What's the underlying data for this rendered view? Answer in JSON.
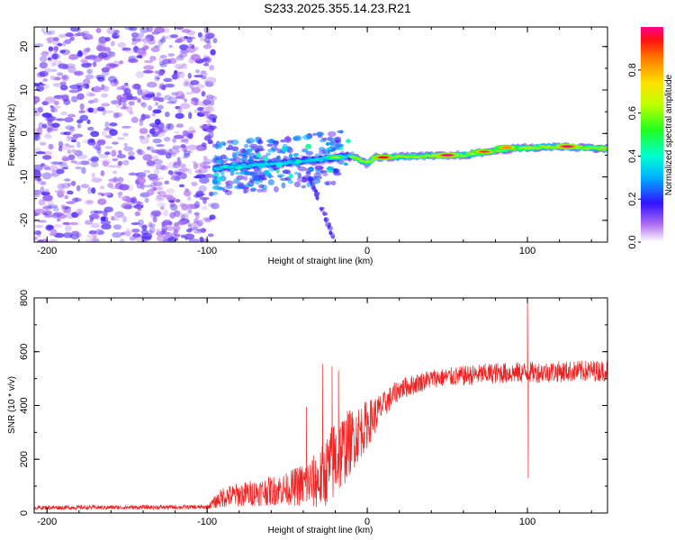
{
  "title": "S233.2025.355.14.23.R21",
  "chart_data": [
    {
      "type": "heatmap",
      "title": "S233.2025.355.14.23.R21",
      "xlabel": "Height of straight line (km)",
      "ylabel": "Frequency (Hz)",
      "xlim": [
        -208,
        150
      ],
      "ylim": [
        -25,
        24.5
      ],
      "xticks": [
        -200,
        -100,
        0,
        100
      ],
      "xtick_labels": [
        "-200",
        "-100",
        "0",
        "100"
      ],
      "yticks": [
        -20,
        -10,
        0,
        10,
        20
      ],
      "ytick_labels": [
        "-20",
        "-10",
        "0",
        "10",
        "20"
      ],
      "noise_region_x": [
        -208,
        -95
      ],
      "ridge": [
        {
          "x": -95,
          "f": -8
        },
        {
          "x": -60,
          "f": -7
        },
        {
          "x": -30,
          "f": -6
        },
        {
          "x": -20,
          "f": -5.5
        },
        {
          "x": -10,
          "f": -5.2
        },
        {
          "x": -5,
          "f": -6
        },
        {
          "x": 0,
          "f": -7
        },
        {
          "x": 5,
          "f": -5.5
        },
        {
          "x": 30,
          "f": -5.3
        },
        {
          "x": 60,
          "f": -5
        },
        {
          "x": 90,
          "f": -3.5
        },
        {
          "x": 120,
          "f": -3
        },
        {
          "x": 150,
          "f": -3.5
        }
      ],
      "hotspots": [
        {
          "x": 10,
          "f": -5.5,
          "amp": 0.95
        },
        {
          "x": 50,
          "f": -5,
          "amp": 1.0
        },
        {
          "x": 73,
          "f": -4.2,
          "amp": 0.9
        },
        {
          "x": 87,
          "f": -3.2,
          "amp": 0.85
        },
        {
          "x": 125,
          "f": -3,
          "amp": 1.0
        },
        {
          "x": -20,
          "f": -5.5,
          "amp": 0.6
        }
      ],
      "colorbar": {
        "label": "Normalized spectral amplitude",
        "range": [
          0,
          1
        ],
        "ticks": [
          0.0,
          0.2,
          0.4,
          0.6,
          0.8
        ],
        "tick_labels": [
          "0.0",
          "0.2",
          "0.4",
          "0.6",
          "0.8"
        ]
      }
    },
    {
      "type": "line",
      "xlabel": "Height of straight line (km)",
      "ylabel": "SNR (10 * v/v)",
      "xlim": [
        -208,
        150
      ],
      "ylim": [
        0,
        800
      ],
      "xticks": [
        -200,
        -100,
        0,
        100
      ],
      "xtick_labels": [
        "-200",
        "-100",
        "0",
        "100"
      ],
      "yticks": [
        0,
        200,
        400,
        600,
        800
      ],
      "ytick_labels": [
        "0",
        "200",
        "400",
        "600",
        "800"
      ],
      "color": "#ee2222",
      "series_envelope": [
        {
          "x": -208,
          "mean": 20,
          "noise": 8
        },
        {
          "x": -100,
          "mean": 22,
          "noise": 8
        },
        {
          "x": -90,
          "mean": 60,
          "noise": 40
        },
        {
          "x": -50,
          "mean": 90,
          "noise": 60
        },
        {
          "x": -30,
          "mean": 120,
          "noise": 110
        },
        {
          "x": -20,
          "mean": 200,
          "noise": 160
        },
        {
          "x": -10,
          "mean": 270,
          "noise": 120
        },
        {
          "x": 0,
          "mean": 330,
          "noise": 90
        },
        {
          "x": 10,
          "mean": 400,
          "noise": 50
        },
        {
          "x": 20,
          "mean": 460,
          "noise": 40
        },
        {
          "x": 40,
          "mean": 500,
          "noise": 35
        },
        {
          "x": 80,
          "mean": 520,
          "noise": 40
        },
        {
          "x": 150,
          "mean": 530,
          "noise": 40
        }
      ],
      "spikes": [
        {
          "x": -38,
          "y": 395
        },
        {
          "x": -28,
          "y": 555
        },
        {
          "x": -22,
          "y": 545
        },
        {
          "x": -18,
          "y": 530
        },
        {
          "x": 100,
          "y": 800
        },
        {
          "x": 100.5,
          "y": 130
        }
      ]
    }
  ]
}
